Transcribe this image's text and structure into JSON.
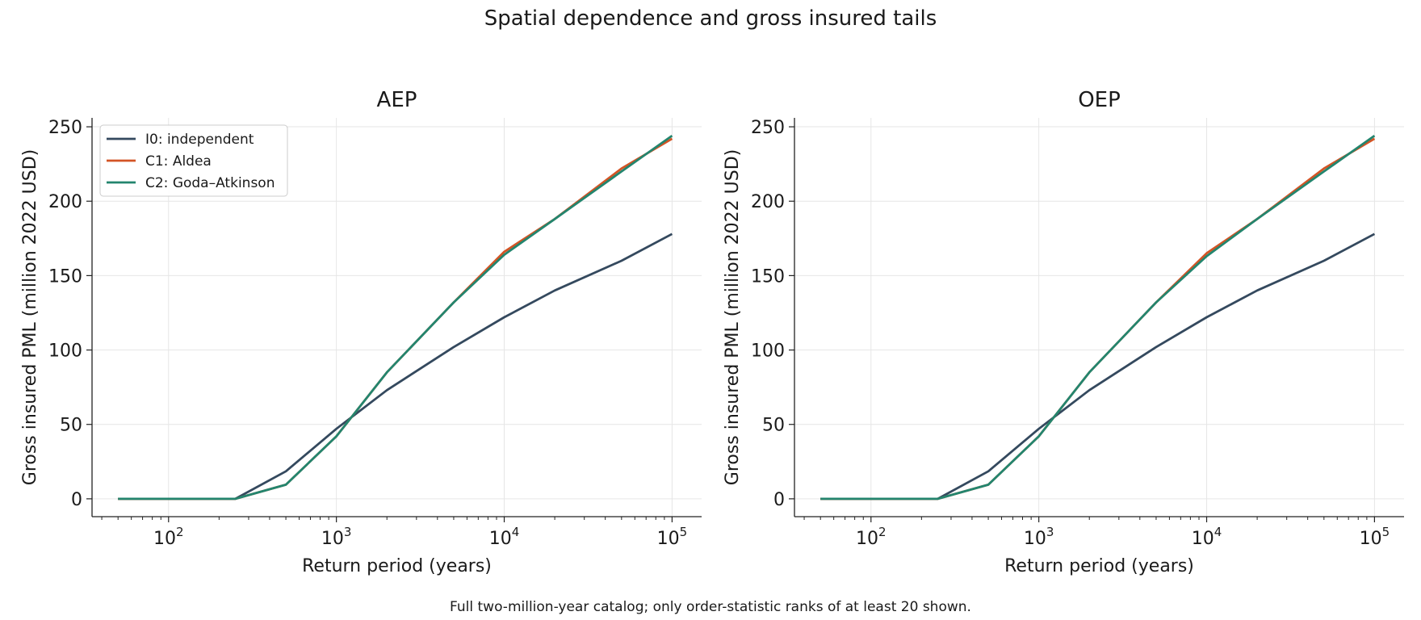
{
  "figure": {
    "title": "Spatial dependence and gross insured tails",
    "footnote": "Full two-million-year catalog; only order-statistic ranks of at least 20 shown."
  },
  "chart_data": [
    {
      "type": "line",
      "title": "AEP",
      "xlabel": "Return period (years)",
      "ylabel": "Gross insured PML (million 2022 USD)",
      "xscale": "log",
      "xlim": [
        35,
        150000
      ],
      "ylim": [
        -12,
        256
      ],
      "xticks": [
        100,
        1000,
        10000,
        100000
      ],
      "xtick_labels": [
        {
          "base": "10",
          "exp": "2"
        },
        {
          "base": "10",
          "exp": "3"
        },
        {
          "base": "10",
          "exp": "4"
        },
        {
          "base": "10",
          "exp": "5"
        }
      ],
      "yticks": [
        0,
        50,
        100,
        150,
        200,
        250
      ],
      "grid": true,
      "legend": "upper left",
      "x": [
        50,
        100,
        250,
        500,
        1000,
        2000,
        5000,
        10000,
        20000,
        50000,
        100000
      ],
      "series": [
        {
          "name": "I0: independent",
          "color": "#34495e",
          "values": [
            0,
            0,
            0,
            18.5,
            47,
            73,
            102,
            122,
            140,
            160,
            178
          ]
        },
        {
          "name": "C1: Aldea",
          "color": "#d35425",
          "values": [
            0,
            0,
            0,
            9.5,
            42,
            85,
            132,
            166,
            188,
            222,
            242
          ]
        },
        {
          "name": "C2: Goda–Atkinson",
          "color": "#23856e",
          "values": [
            0,
            0,
            0,
            9.5,
            42,
            85,
            132,
            164,
            188,
            220,
            244
          ]
        }
      ]
    },
    {
      "type": "line",
      "title": "OEP",
      "xlabel": "Return period (years)",
      "ylabel": "Gross insured PML (million 2022 USD)",
      "xscale": "log",
      "xlim": [
        35,
        150000
      ],
      "ylim": [
        -12,
        256
      ],
      "xticks": [
        100,
        1000,
        10000,
        100000
      ],
      "xtick_labels": [
        {
          "base": "10",
          "exp": "2"
        },
        {
          "base": "10",
          "exp": "3"
        },
        {
          "base": "10",
          "exp": "4"
        },
        {
          "base": "10",
          "exp": "5"
        }
      ],
      "yticks": [
        0,
        50,
        100,
        150,
        200,
        250
      ],
      "grid": true,
      "legend": "none",
      "x": [
        50,
        100,
        250,
        500,
        1000,
        2000,
        5000,
        10000,
        20000,
        50000,
        100000
      ],
      "series": [
        {
          "name": "I0: independent",
          "color": "#34495e",
          "values": [
            0,
            0,
            0,
            18.5,
            47,
            73,
            102,
            122,
            140,
            160,
            178
          ]
        },
        {
          "name": "C1: Aldea",
          "color": "#d35425",
          "values": [
            0,
            0,
            0,
            9.5,
            42,
            85,
            132,
            165,
            188,
            222,
            242
          ]
        },
        {
          "name": "C2: Goda–Atkinson",
          "color": "#23856e",
          "values": [
            0,
            0,
            0,
            9.5,
            42,
            85,
            132,
            163,
            188,
            220,
            244
          ]
        }
      ]
    }
  ]
}
